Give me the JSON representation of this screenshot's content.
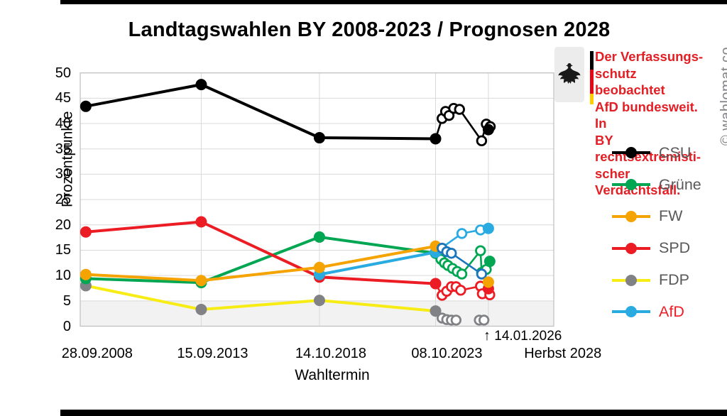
{
  "title": "Landtagswahlen BY 2008-2023 / Prognosen 2028",
  "watermark": "© wahlomat.co",
  "warning": {
    "color": "#e31e24",
    "lines": [
      "Der Verfassungs-",
      "schutz beobachtet",
      "AfD bundesweit. In",
      "BY rechtsextremisti-",
      "scher Verdachtsfall."
    ]
  },
  "annotation": {
    "arrow": "↑",
    "latest_poll_date": "14.01.2026"
  },
  "chart_data": {
    "type": "line",
    "title": "Landtagswahlen BY 2008-2023 / Prognosen 2028",
    "xlabel": "Wahltermin",
    "ylabel": "Prozentpunkte",
    "ylim": [
      0,
      50
    ],
    "yticks": [
      0,
      5,
      10,
      15,
      20,
      25,
      30,
      35,
      40,
      45,
      50
    ],
    "grid": "on",
    "threshold_band": {
      "from": 0,
      "to": 5,
      "color": "#f2f2f2"
    },
    "colors": {
      "grid": "#d9d9d9",
      "plot_border": "#bfbfbf",
      "legend_text": "#595959"
    },
    "x_axis_labels": [
      {
        "text": "28.09.2008",
        "t": 2008.74
      },
      {
        "text": "15.09.2013",
        "t": 2013.7
      },
      {
        "text": "14.10.2018",
        "t": 2018.78
      },
      {
        "text": "08.10.2023",
        "t": 2023.77
      },
      {
        "text": "Herbst 2028",
        "t": 2028.75
      }
    ],
    "vgrid_t": [
      2013.7,
      2018.78,
      2023.77,
      2026.04
    ],
    "legend": [
      {
        "label": "CSU",
        "color": "#000000",
        "dot": "#000000",
        "text_color": "#595959"
      },
      {
        "label": "Grüne",
        "color": "#00a651",
        "dot": "#00a651",
        "text_color": "#595959"
      },
      {
        "label": "FW",
        "color": "#f5a300",
        "dot": "#f5a300",
        "text_color": "#595959"
      },
      {
        "label": "SPD",
        "color": "#ec1c24",
        "dot": "#ec1c24",
        "text_color": "#595959"
      },
      {
        "label": "FDP",
        "color": "#f7ec13",
        "dot": "#808285",
        "text_color": "#595959"
      },
      {
        "label": "AfD",
        "color": "#29abe2",
        "dot": "#29abe2",
        "text_color": "#ec1c24"
      }
    ],
    "series": [
      {
        "name": "FDP",
        "color": "#f7ec13",
        "marker_color": "#808285",
        "poll_color": "#808285",
        "polls_connected": false,
        "elections": [
          {
            "t": 2008.74,
            "v": 8.0
          },
          {
            "t": 2013.7,
            "v": 3.3
          },
          {
            "t": 2018.78,
            "v": 5.1
          },
          {
            "t": 2023.77,
            "v": 3.0
          }
        ],
        "polls": [
          {
            "t": 2024.05,
            "v": 1.6
          },
          {
            "t": 2024.25,
            "v": 1.3
          },
          {
            "t": 2024.45,
            "v": 1.2
          },
          {
            "t": 2024.65,
            "v": 1.2
          },
          {
            "t": 2025.65,
            "v": 1.2
          },
          {
            "t": 2025.85,
            "v": 1.2
          }
        ],
        "forecast": null
      },
      {
        "name": "Grüne",
        "color": "#00a651",
        "marker_color": "#00a651",
        "poll_color": "#00a651",
        "polls_connected": true,
        "elections": [
          {
            "t": 2008.74,
            "v": 9.4
          },
          {
            "t": 2013.7,
            "v": 8.6
          },
          {
            "t": 2018.78,
            "v": 17.6
          },
          {
            "t": 2023.77,
            "v": 14.4
          }
        ],
        "polls": [
          {
            "t": 2024.0,
            "v": 13.2
          },
          {
            "t": 2024.15,
            "v": 12.5
          },
          {
            "t": 2024.3,
            "v": 12.0
          },
          {
            "t": 2024.5,
            "v": 11.4
          },
          {
            "t": 2024.7,
            "v": 10.8
          },
          {
            "t": 2024.9,
            "v": 10.3
          },
          {
            "t": 2025.7,
            "v": 14.9
          },
          {
            "t": 2025.75,
            "v": 10.6
          },
          {
            "t": 2025.95,
            "v": 11.2
          }
        ],
        "forecast": {
          "t": 2026.1,
          "v": 12.8
        }
      },
      {
        "name": "SPD",
        "color": "#ec1c24",
        "marker_color": "#ec1c24",
        "poll_color": "#ec1c24",
        "polls_connected": true,
        "elections": [
          {
            "t": 2008.74,
            "v": 18.6
          },
          {
            "t": 2013.7,
            "v": 20.6
          },
          {
            "t": 2018.78,
            "v": 9.7
          },
          {
            "t": 2023.77,
            "v": 8.4
          }
        ],
        "polls": [
          {
            "t": 2024.05,
            "v": 6.1
          },
          {
            "t": 2024.25,
            "v": 6.9
          },
          {
            "t": 2024.45,
            "v": 7.8
          },
          {
            "t": 2024.65,
            "v": 7.8
          },
          {
            "t": 2024.85,
            "v": 7.1
          },
          {
            "t": 2025.7,
            "v": 7.9
          },
          {
            "t": 2025.78,
            "v": 6.4
          },
          {
            "t": 2026.1,
            "v": 6.2
          }
        ],
        "forecast": {
          "t": 2026.04,
          "v": 7.4
        }
      },
      {
        "name": "AfD",
        "color": "#29abe2",
        "marker_color": "#29abe2",
        "poll_color": "#29abe2",
        "polls_connected": true,
        "elections": [
          {
            "t": 2018.78,
            "v": 10.2
          },
          {
            "t": 2023.77,
            "v": 14.6
          }
        ],
        "polls": [
          {
            "t": 2024.9,
            "v": 18.3
          },
          {
            "t": 2025.7,
            "v": 19.0
          }
        ],
        "forecast": {
          "t": 2026.04,
          "v": 19.3
        }
      },
      {
        "name": "FW",
        "color": "#f5a300",
        "marker_color": "#f5a300",
        "poll_color": "#1b75bc",
        "polls_connected": true,
        "elections": [
          {
            "t": 2008.74,
            "v": 10.2
          },
          {
            "t": 2013.7,
            "v": 9.0
          },
          {
            "t": 2018.78,
            "v": 11.6
          },
          {
            "t": 2023.77,
            "v": 15.8
          }
        ],
        "polls": [
          {
            "t": 2024.05,
            "v": 15.4
          },
          {
            "t": 2024.25,
            "v": 14.7
          },
          {
            "t": 2024.45,
            "v": 14.4
          },
          {
            "t": 2025.75,
            "v": 10.3
          }
        ],
        "forecast": {
          "t": 2026.04,
          "v": 8.7
        }
      },
      {
        "name": "CSU",
        "color": "#000000",
        "marker_color": "#000000",
        "poll_color": "#000000",
        "polls_connected": true,
        "elections": [
          {
            "t": 2008.74,
            "v": 43.4
          },
          {
            "t": 2013.7,
            "v": 47.7
          },
          {
            "t": 2018.78,
            "v": 37.2
          },
          {
            "t": 2023.77,
            "v": 37.0
          }
        ],
        "polls": [
          {
            "t": 2024.05,
            "v": 41.0
          },
          {
            "t": 2024.2,
            "v": 42.4
          },
          {
            "t": 2024.35,
            "v": 41.6
          },
          {
            "t": 2024.55,
            "v": 43.0
          },
          {
            "t": 2024.8,
            "v": 42.8
          },
          {
            "t": 2025.75,
            "v": 36.6
          },
          {
            "t": 2025.95,
            "v": 39.9
          },
          {
            "t": 2026.12,
            "v": 39.4
          }
        ],
        "forecast": {
          "t": 2026.04,
          "v": 38.8
        }
      }
    ]
  }
}
